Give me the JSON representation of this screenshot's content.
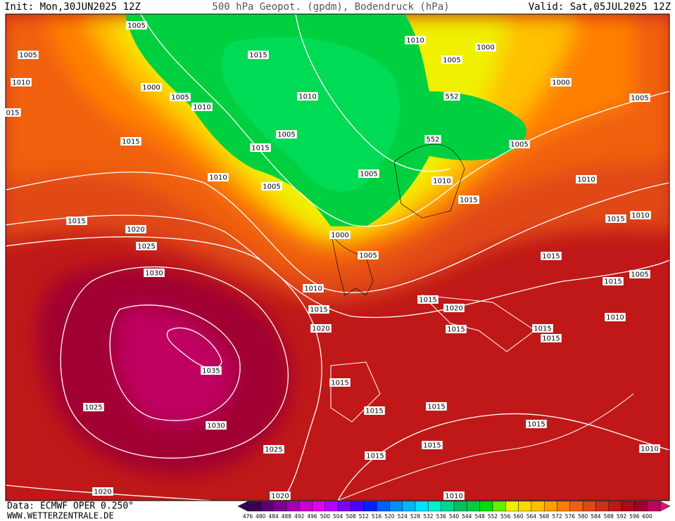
{
  "header": {
    "init": "Init: Mon,30JUN2025 12Z",
    "title": "500 hPa Geopot. (gpdm), Bodendruck (hPa)",
    "valid": "Valid: Sat,05JUL2025 12Z"
  },
  "footer": {
    "data": "Data: ECMWF OPER 0.250°",
    "url": "WWW.WETTERZENTRALE.DE"
  },
  "isobar_labels": [
    "1005",
    "1005",
    "1010",
    "015",
    "1000",
    "1005",
    "1010",
    "1015",
    "1010",
    "1005",
    "1015",
    "1010",
    "1005",
    "1005",
    "1010",
    "1005",
    "1000",
    "552",
    "552",
    "1005",
    "1000",
    "1005",
    "1010",
    "1015",
    "1010",
    "1015",
    "1015",
    "1020",
    "1025",
    "1000",
    "1005",
    "1015",
    "1010",
    "1015",
    "1005",
    "1015",
    "1010",
    "1015",
    "1020",
    "1015",
    "1020",
    "1015",
    "1015",
    "1015",
    "1010",
    "1030",
    "1035",
    "1015",
    "1015",
    "1015",
    "1015",
    "1025",
    "1030",
    "1025",
    "1015",
    "1015",
    "1010",
    "1020",
    "1020",
    "1010"
  ],
  "legend": {
    "labels": [
      "476",
      "480",
      "484",
      "488",
      "492",
      "496",
      "500",
      "504",
      "508",
      "512",
      "516",
      "520",
      "524",
      "528",
      "532",
      "536",
      "540",
      "544",
      "548",
      "552",
      "556",
      "560",
      "564",
      "568",
      "572",
      "576",
      "580",
      "584",
      "588",
      "592",
      "596",
      "600"
    ],
    "colors": [
      "#3a0050",
      "#5a006e",
      "#7a0090",
      "#a000b0",
      "#c800d0",
      "#e000f0",
      "#b400ff",
      "#8000ff",
      "#4a00ff",
      "#0020ff",
      "#0060ff",
      "#0090ff",
      "#00b8ff",
      "#00e0ff",
      "#00f0d0",
      "#00d890",
      "#00c060",
      "#00d040",
      "#00e000",
      "#60f000",
      "#f0f000",
      "#ffd800",
      "#ffc000",
      "#ffa000",
      "#ff8000",
      "#f06010",
      "#e04818",
      "#d03018",
      "#c01818",
      "#b00818",
      "#a00030",
      "#c00060"
    ]
  }
}
